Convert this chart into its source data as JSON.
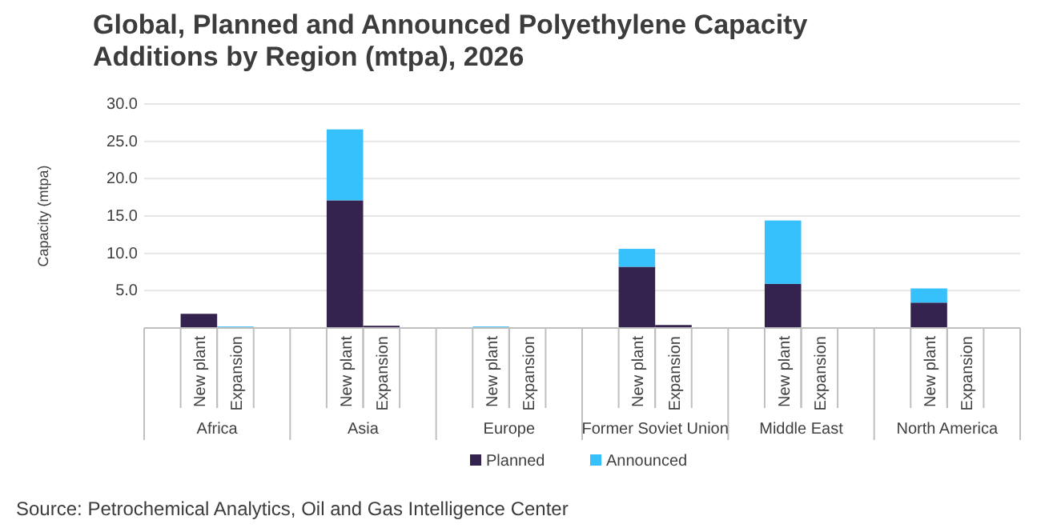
{
  "chart_data": {
    "type": "bar",
    "title": "Global, Planned and Announced Polyethylene Capacity Additions by Region (mtpa), 2026",
    "ylabel": "Capacity (mtpa)",
    "categories": [
      "New plant",
      "Expansion",
      "New plant",
      "Expansion",
      "New plant",
      "Expansion",
      "New plant",
      "Expansion",
      "New plant",
      "Expansion",
      "New plant",
      "Expansion"
    ],
    "series": [
      {
        "name": "Planned",
        "color": "#35234f",
        "values": [
          1.9,
          0,
          17.1,
          0.3,
          0,
          0,
          8.2,
          0.4,
          5.9,
          0,
          3.4,
          0
        ]
      },
      {
        "name": "Announced",
        "color": "#36c0fc",
        "values": [
          0,
          0.2,
          9.5,
          0,
          0.2,
          0,
          2.4,
          0,
          8.5,
          0,
          1.9,
          0
        ]
      }
    ],
    "stacked": true,
    "ylim": [
      0,
      30
    ],
    "yticks": [
      {
        "value": 5,
        "label": "5.0"
      },
      {
        "value": 10,
        "label": "10.0"
      },
      {
        "value": 15,
        "label": "15.0"
      },
      {
        "value": 20,
        "label": "20.0"
      },
      {
        "value": 25,
        "label": "25.0"
      },
      {
        "value": 30,
        "label": "30.0"
      }
    ],
    "grid": "y",
    "legend": "bottom",
    "annotations": [
      "Africa",
      "Asia",
      "Europe",
      "Former Soviet Union",
      "Middle East",
      "North America",
      "Source: Petrochemical Analytics, Oil and Gas Intelligence Center"
    ]
  }
}
